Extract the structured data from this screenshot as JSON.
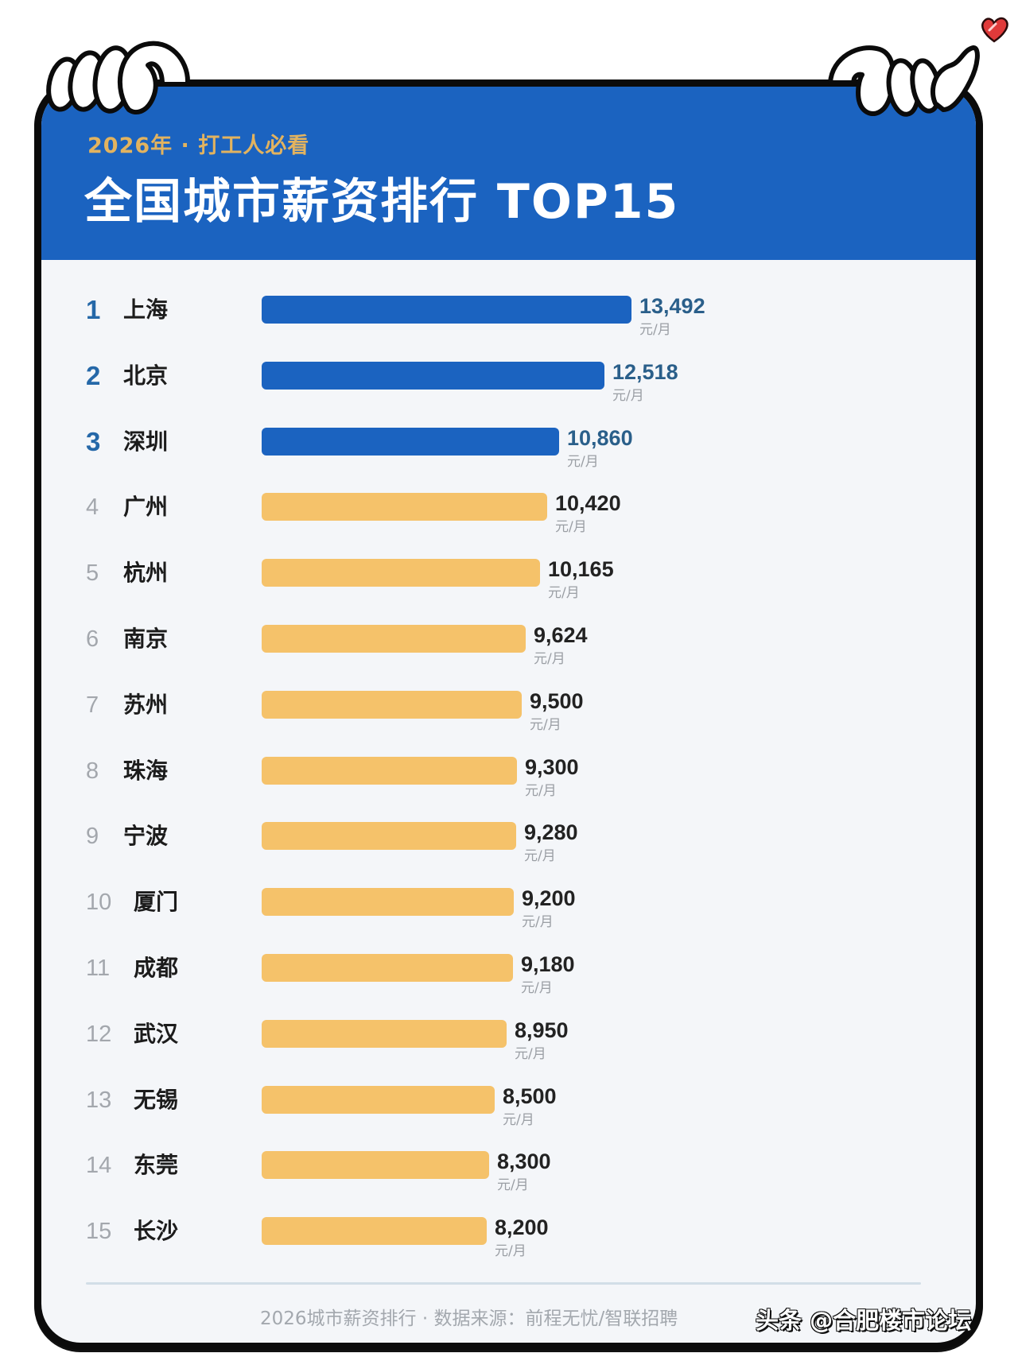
{
  "header": {
    "subtitle": "2026年 · 打工人必看",
    "title": "全国城市薪资排行 TOP15"
  },
  "unit_label": "元/月",
  "rows": [
    {
      "rank": "1",
      "city": "上海",
      "value": "13,492",
      "unit": "元/月"
    },
    {
      "rank": "2",
      "city": "北京",
      "value": "12,518",
      "unit": "元/月"
    },
    {
      "rank": "3",
      "city": "深圳",
      "value": "10,860",
      "unit": "元/月"
    },
    {
      "rank": "4",
      "city": "广州",
      "value": "10,420",
      "unit": "元/月"
    },
    {
      "rank": "5",
      "city": "杭州",
      "value": "10,165",
      "unit": "元/月"
    },
    {
      "rank": "6",
      "city": "南京",
      "value": "9,624",
      "unit": "元/月"
    },
    {
      "rank": "7",
      "city": "苏州",
      "value": "9,500",
      "unit": "元/月"
    },
    {
      "rank": "8",
      "city": "珠海",
      "value": "9,300",
      "unit": "元/月"
    },
    {
      "rank": "9",
      "city": "宁波",
      "value": "9,280",
      "unit": "元/月"
    },
    {
      "rank": "10",
      "city": "厦门",
      "value": "9,200",
      "unit": "元/月"
    },
    {
      "rank": "11",
      "city": "成都",
      "value": "9,180",
      "unit": "元/月"
    },
    {
      "rank": "12",
      "city": "武汉",
      "value": "8,950",
      "unit": "元/月"
    },
    {
      "rank": "13",
      "city": "无锡",
      "value": "8,500",
      "unit": "元/月"
    },
    {
      "rank": "14",
      "city": "东莞",
      "value": "8,300",
      "unit": "元/月"
    },
    {
      "rank": "15",
      "city": "长沙",
      "value": "8,200",
      "unit": "元/月"
    }
  ],
  "footer": {
    "source": "2026城市薪资排行 · 数据来源：前程无忧/智联招聘",
    "watermark": "头条 @合肥楼市论坛"
  },
  "colors": {
    "header_blue": "#1b63c0",
    "top3_bar": "#1b63c0",
    "other_bar": "#f5c26a",
    "subtitle_gold": "#e2b35f",
    "background": "#f4f6f9"
  },
  "chart_data": {
    "type": "bar",
    "orientation": "horizontal",
    "title": "全国城市薪资排行 TOP15",
    "subtitle": "2026年 · 打工人必看",
    "categories": [
      "上海",
      "北京",
      "深圳",
      "广州",
      "杭州",
      "南京",
      "苏州",
      "珠海",
      "宁波",
      "厦门",
      "成都",
      "武汉",
      "无锡",
      "东莞",
      "长沙"
    ],
    "values": [
      13492,
      12518,
      10860,
      10420,
      10165,
      9624,
      9500,
      9300,
      9280,
      9200,
      9180,
      8950,
      8500,
      8300,
      8200
    ],
    "unit": "元/月",
    "highlight": {
      "top_n": 3,
      "color": "#1b63c0",
      "other_color": "#f5c26a"
    },
    "xlabel": "",
    "ylabel": "",
    "grid": false,
    "legend": "none",
    "source_note": "2026城市薪资排行 · 数据来源：前程无忧/智联招聘"
  }
}
